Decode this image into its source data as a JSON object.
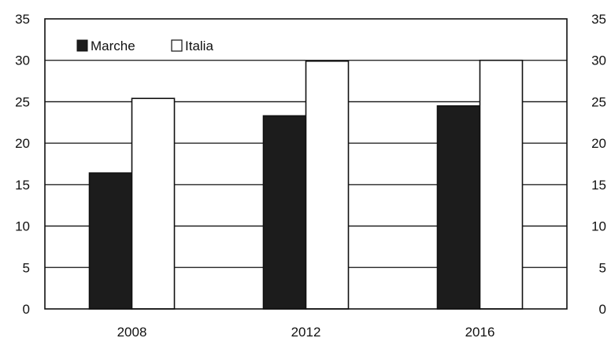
{
  "chart_data": {
    "type": "bar",
    "title": "",
    "xlabel": "",
    "ylabel": "",
    "categories": [
      "2008",
      "2012",
      "2016"
    ],
    "series": [
      {
        "name": "Marche",
        "values": [
          16.4,
          23.3,
          24.5
        ],
        "color": "#1c1c1c"
      },
      {
        "name": "Italia",
        "values": [
          25.4,
          29.9,
          30.0
        ],
        "color": "#ffffff"
      }
    ],
    "ylim": [
      0,
      35
    ],
    "yticks": [
      "0",
      "5",
      "10",
      "15",
      "20",
      "25",
      "30",
      "35"
    ],
    "y_axis_mirrored_right": true,
    "grid": true,
    "legend_position": "top-left"
  }
}
